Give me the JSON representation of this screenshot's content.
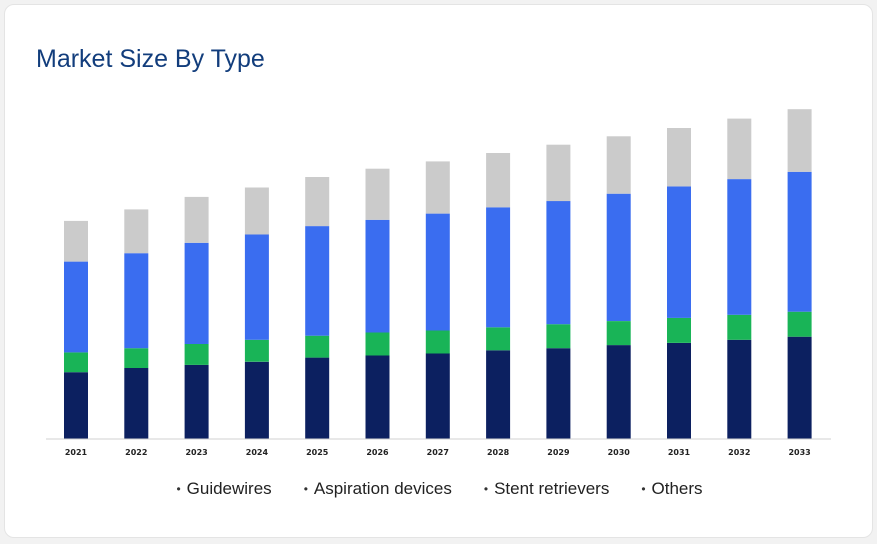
{
  "title": "Market Size By Type",
  "colors": {
    "Guidewires": "#0c2060",
    "Aspiration devices": "#19b457",
    "Stent retrievers": "#3a6df0",
    "Others": "#cbcbcb"
  },
  "legend": {
    "items": [
      {
        "bullet": "•",
        "label": "Guidewires"
      },
      {
        "bullet": "•",
        "label": "Aspiration devices"
      },
      {
        "bullet": "•",
        "label": "Stent retrievers"
      },
      {
        "bullet": "•",
        "label": "Others"
      }
    ]
  },
  "chart_data": {
    "type": "bar",
    "stacked": true,
    "title": "Market Size By Type",
    "categories": [
      "2021",
      "2022",
      "2023",
      "2024",
      "2025",
      "2026",
      "2027",
      "2028",
      "2029",
      "2030",
      "2031",
      "2032",
      "2033"
    ],
    "series": [
      {
        "name": "Guidewires",
        "values": [
          64,
          68,
          71,
          74,
          78,
          80,
          82,
          85,
          87,
          90,
          92,
          95,
          98
        ]
      },
      {
        "name": "Aspiration devices",
        "values": [
          19,
          19,
          20,
          21,
          21,
          22,
          22,
          22,
          23,
          23,
          24,
          24,
          24
        ]
      },
      {
        "name": "Stent retrievers",
        "values": [
          87,
          91,
          97,
          101,
          105,
          108,
          112,
          115,
          118,
          122,
          126,
          130,
          134
        ]
      },
      {
        "name": "Others",
        "values": [
          39,
          42,
          44,
          45,
          47,
          49,
          50,
          52,
          54,
          55,
          56,
          58,
          60
        ]
      }
    ],
    "ylim": [
      0,
      320
    ],
    "grid": false,
    "legend_position": "bottom"
  }
}
